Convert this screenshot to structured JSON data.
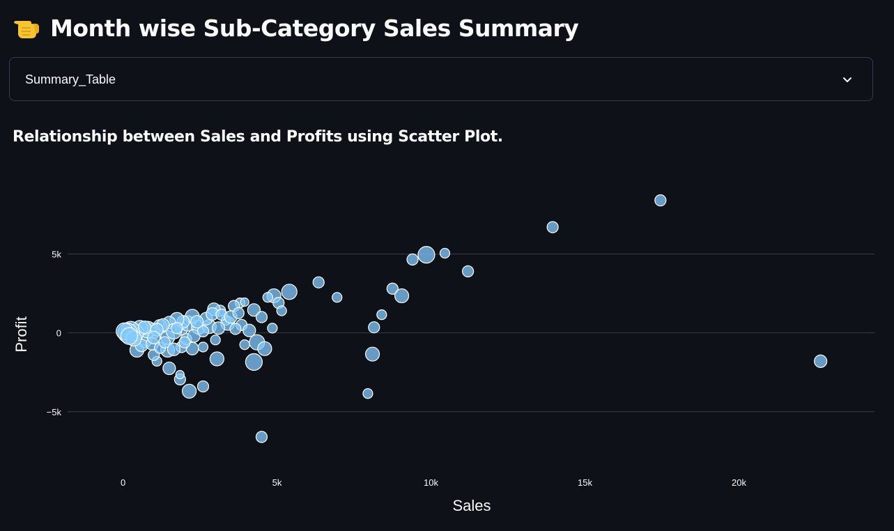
{
  "header": {
    "title": "Month wise Sub-Category Sales Summary",
    "icon": "pointing-hand-emoji-icon"
  },
  "select": {
    "value": "Summary_Table",
    "icon": "chevron-down-icon"
  },
  "section": {
    "heading": "Relationship between Sales and Profits using Scatter Plot."
  },
  "colors": {
    "background": "#0e1117",
    "point_fill": "#83c9ff",
    "point_stroke": "#ffffff",
    "grid": "#3a3d46",
    "text": "#fafafa"
  },
  "chart_data": {
    "type": "scatter",
    "xlabel": "Sales",
    "ylabel": "Profit",
    "xlim": [
      -1800,
      24400
    ],
    "ylim": [
      -8500,
      10500
    ],
    "x_ticks": [
      0,
      5000,
      10000,
      15000,
      20000
    ],
    "x_tick_labels": [
      "0",
      "5k",
      "10k",
      "15k",
      "20k"
    ],
    "y_ticks": [
      -5000,
      0,
      5000
    ],
    "y_tick_labels": [
      "−5k",
      "0",
      "5k"
    ],
    "grid": "horizontal",
    "points": [
      {
        "x": 17450,
        "y": 8400,
        "size": 8
      },
      {
        "x": 13950,
        "y": 6700,
        "size": 8
      },
      {
        "x": 9850,
        "y": 4950,
        "size": 12
      },
      {
        "x": 9400,
        "y": 4650,
        "size": 8
      },
      {
        "x": 10450,
        "y": 5050,
        "size": 7
      },
      {
        "x": 11200,
        "y": 3900,
        "size": 8
      },
      {
        "x": 6350,
        "y": 3200,
        "size": 8
      },
      {
        "x": 6950,
        "y": 2250,
        "size": 7
      },
      {
        "x": 8750,
        "y": 2800,
        "size": 8
      },
      {
        "x": 9050,
        "y": 2350,
        "size": 10
      },
      {
        "x": 8400,
        "y": 1150,
        "size": 7
      },
      {
        "x": 8150,
        "y": 350,
        "size": 8
      },
      {
        "x": 8100,
        "y": -1350,
        "size": 10
      },
      {
        "x": 7950,
        "y": -3850,
        "size": 7
      },
      {
        "x": 22650,
        "y": -1800,
        "size": 9
      },
      {
        "x": 4500,
        "y": -6600,
        "size": 8
      },
      {
        "x": 5400,
        "y": 2600,
        "size": 11
      },
      {
        "x": 4900,
        "y": 2350,
        "size": 10
      },
      {
        "x": 5050,
        "y": 1900,
        "size": 8
      },
      {
        "x": 5150,
        "y": 1400,
        "size": 7
      },
      {
        "x": 4700,
        "y": 2250,
        "size": 7
      },
      {
        "x": 4250,
        "y": 1450,
        "size": 9
      },
      {
        "x": 4500,
        "y": 1000,
        "size": 8
      },
      {
        "x": 3800,
        "y": 1900,
        "size": 7
      },
      {
        "x": 3950,
        "y": 1950,
        "size": 6
      },
      {
        "x": 4850,
        "y": 300,
        "size": 7
      },
      {
        "x": 4350,
        "y": -600,
        "size": 11
      },
      {
        "x": 4600,
        "y": -1000,
        "size": 10
      },
      {
        "x": 4250,
        "y": -1850,
        "size": 12
      },
      {
        "x": 3050,
        "y": -1650,
        "size": 10
      },
      {
        "x": 3000,
        "y": -450,
        "size": 7
      },
      {
        "x": 3600,
        "y": 1700,
        "size": 8
      },
      {
        "x": 3350,
        "y": 800,
        "size": 7
      },
      {
        "x": 3150,
        "y": 1400,
        "size": 8
      },
      {
        "x": 2950,
        "y": 1500,
        "size": 9
      },
      {
        "x": 3400,
        "y": 600,
        "size": 10
      },
      {
        "x": 3850,
        "y": 500,
        "size": 8
      },
      {
        "x": 3950,
        "y": -750,
        "size": 7
      },
      {
        "x": 4100,
        "y": 150,
        "size": 9
      },
      {
        "x": 2600,
        "y": -3400,
        "size": 8
      },
      {
        "x": 2150,
        "y": -3700,
        "size": 10
      },
      {
        "x": 1850,
        "y": -2950,
        "size": 8
      },
      {
        "x": 1850,
        "y": -2650,
        "size": 6
      },
      {
        "x": 1500,
        "y": -2250,
        "size": 9
      },
      {
        "x": 1100,
        "y": -1800,
        "size": 7
      },
      {
        "x": 2250,
        "y": -1000,
        "size": 9
      },
      {
        "x": 2600,
        "y": -900,
        "size": 7
      },
      {
        "x": 1900,
        "y": -900,
        "size": 8
      },
      {
        "x": 1450,
        "y": -1100,
        "size": 10
      },
      {
        "x": 1000,
        "y": -1400,
        "size": 8
      },
      {
        "x": 1450,
        "y": -300,
        "size": 10
      },
      {
        "x": 1900,
        "y": 250,
        "size": 9
      },
      {
        "x": 2100,
        "y": 600,
        "size": 11
      },
      {
        "x": 2450,
        "y": 350,
        "size": 10
      },
      {
        "x": 2800,
        "y": 400,
        "size": 10
      },
      {
        "x": 2700,
        "y": 900,
        "size": 9
      },
      {
        "x": 2250,
        "y": 1050,
        "size": 10
      },
      {
        "x": 1950,
        "y": 700,
        "size": 9
      },
      {
        "x": 1750,
        "y": 850,
        "size": 10
      },
      {
        "x": 1500,
        "y": 650,
        "size": 9
      },
      {
        "x": 1650,
        "y": 100,
        "size": 11
      },
      {
        "x": 1200,
        "y": 400,
        "size": 10
      },
      {
        "x": 950,
        "y": 100,
        "size": 11
      },
      {
        "x": 700,
        "y": -500,
        "size": 10
      },
      {
        "x": 450,
        "y": -1100,
        "size": 10
      },
      {
        "x": 800,
        "y": 200,
        "size": 12
      },
      {
        "x": 550,
        "y": 300,
        "size": 11
      },
      {
        "x": 400,
        "y": 0,
        "size": 12
      },
      {
        "x": 250,
        "y": 150,
        "size": 13
      },
      {
        "x": 150,
        "y": 0,
        "size": 14
      },
      {
        "x": 50,
        "y": 100,
        "size": 12
      },
      {
        "x": 600,
        "y": -800,
        "size": 9
      },
      {
        "x": 950,
        "y": -700,
        "size": 9
      },
      {
        "x": 1200,
        "y": -950,
        "size": 8
      },
      {
        "x": 1650,
        "y": -1050,
        "size": 9
      },
      {
        "x": 2050,
        "y": -400,
        "size": 8
      },
      {
        "x": 2300,
        "y": -200,
        "size": 9
      },
      {
        "x": 2600,
        "y": 100,
        "size": 8
      },
      {
        "x": 2900,
        "y": 1200,
        "size": 9
      },
      {
        "x": 3200,
        "y": 1150,
        "size": 8
      },
      {
        "x": 3500,
        "y": 1000,
        "size": 9
      },
      {
        "x": 1300,
        "y": 500,
        "size": 9
      },
      {
        "x": 1750,
        "y": 300,
        "size": 8
      },
      {
        "x": 1100,
        "y": 200,
        "size": 9
      },
      {
        "x": 700,
        "y": 350,
        "size": 9
      },
      {
        "x": 350,
        "y": -350,
        "size": 11
      },
      {
        "x": 200,
        "y": -200,
        "size": 12
      },
      {
        "x": 1000,
        "y": -300,
        "size": 9
      },
      {
        "x": 1350,
        "y": -600,
        "size": 8
      },
      {
        "x": 2000,
        "y": -600,
        "size": 8
      },
      {
        "x": 2400,
        "y": 700,
        "size": 9
      },
      {
        "x": 3100,
        "y": 300,
        "size": 9
      },
      {
        "x": 3650,
        "y": 250,
        "size": 8
      },
      {
        "x": 3750,
        "y": 1250,
        "size": 8
      }
    ]
  }
}
